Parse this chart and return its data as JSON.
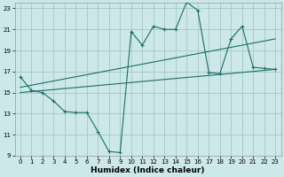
{
  "bg_color": "#cce8e8",
  "grid_color": "#aacccc",
  "line_color": "#1a6e6a",
  "xlabel": "Humidex (Indice chaleur)",
  "xlim": [
    -0.5,
    23.5
  ],
  "ylim": [
    9,
    23.5
  ],
  "yticks": [
    9,
    11,
    13,
    15,
    17,
    19,
    21,
    23
  ],
  "xticks": [
    0,
    1,
    2,
    3,
    4,
    5,
    6,
    7,
    8,
    9,
    10,
    11,
    12,
    13,
    14,
    15,
    16,
    17,
    18,
    19,
    20,
    21,
    22,
    23
  ],
  "series1_x": [
    0,
    1,
    2,
    3,
    4,
    5,
    6,
    7,
    8,
    9,
    10,
    11,
    12,
    13,
    14,
    15,
    16,
    17,
    18,
    19,
    20,
    21,
    22,
    23
  ],
  "series1_y": [
    16.5,
    15.2,
    15.0,
    14.2,
    13.2,
    13.1,
    13.1,
    11.3,
    9.4,
    9.3,
    20.8,
    19.5,
    21.3,
    21.0,
    21.0,
    23.6,
    22.8,
    16.9,
    16.8,
    20.1,
    21.3,
    17.4,
    17.3,
    17.2
  ],
  "series2_x": [
    0,
    23
  ],
  "series2_y": [
    15.5,
    20.1
  ],
  "series3_x": [
    0,
    23
  ],
  "series3_y": [
    15.0,
    17.2
  ],
  "xlabel_fontsize": 6.5,
  "tick_fontsize": 5.0
}
